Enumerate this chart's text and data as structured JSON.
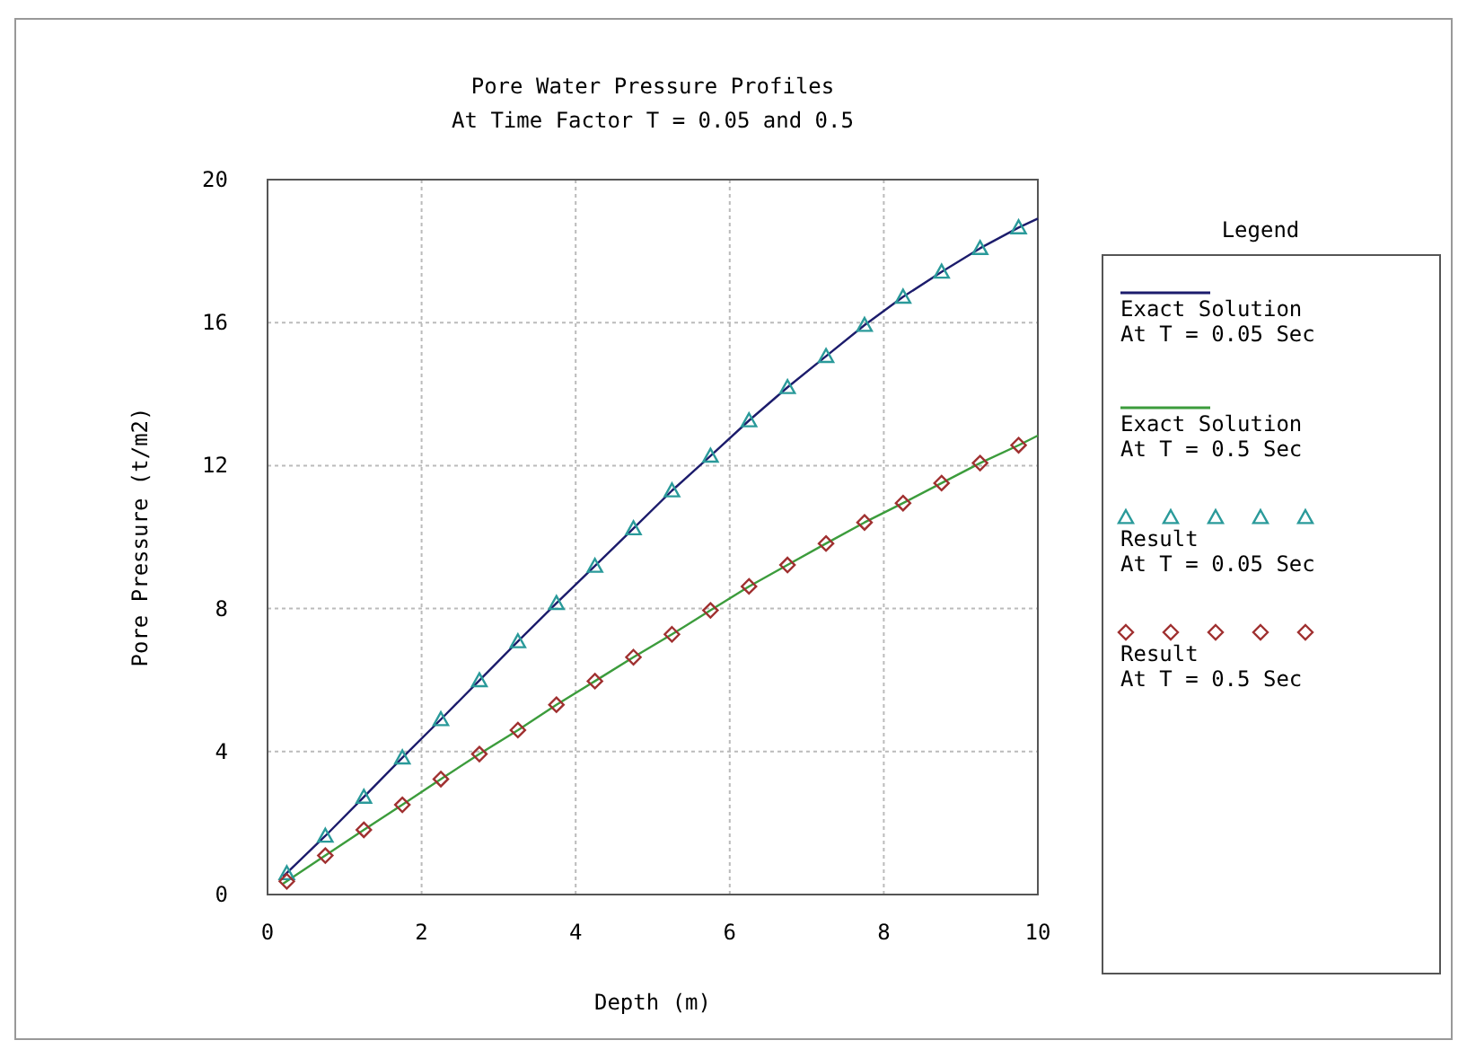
{
  "chart_data": {
    "type": "line",
    "title": "Pore Water Pressure Profiles",
    "subtitle": "At Time Factor T = 0.05 and 0.5",
    "xlabel": "Depth (m)",
    "ylabel": "Pore Pressure (t/m2)",
    "legend_title": "Legend",
    "legend": "right",
    "grid": true,
    "xlim": [
      0,
      10
    ],
    "ylim": [
      0,
      20
    ],
    "xticks": [
      0,
      2,
      4,
      6,
      8,
      10
    ],
    "yticks": [
      0,
      4,
      8,
      12,
      16,
      20
    ],
    "series": [
      {
        "name": "Exact Solution\nAt T = 0.05 Sec",
        "color": "#1c1c6c",
        "marker": "none",
        "x": [
          0.2,
          0.75,
          1.25,
          1.75,
          2.25,
          2.75,
          3.25,
          3.75,
          4.25,
          4.75,
          5.25,
          5.75,
          6.25,
          6.75,
          7.25,
          7.75,
          8.25,
          8.75,
          9.25,
          9.75,
          10
        ],
        "values": [
          0.5,
          1.64,
          2.73,
          3.83,
          4.9,
          5.99,
          7.08,
          8.15,
          9.19,
          10.24,
          11.3,
          12.27,
          13.26,
          14.19,
          15.06,
          15.93,
          16.72,
          17.42,
          18.08,
          18.66,
          18.91
        ]
      },
      {
        "name": "Exact Solution\nAt T = 0.5 Sec",
        "color": "#3c9c3c",
        "marker": "none",
        "x": [
          0.2,
          0.75,
          1.25,
          1.75,
          2.25,
          2.75,
          3.25,
          3.75,
          4.25,
          4.75,
          5.25,
          5.75,
          6.25,
          6.75,
          7.25,
          7.75,
          8.25,
          8.75,
          9.25,
          9.75,
          10
        ],
        "values": [
          0.3,
          1.09,
          1.81,
          2.51,
          3.23,
          3.93,
          4.6,
          5.31,
          5.97,
          6.64,
          7.28,
          7.95,
          8.62,
          9.22,
          9.82,
          10.41,
          10.95,
          11.51,
          12.07,
          12.57,
          12.84
        ]
      },
      {
        "name": "Result\nAt T = 0.05 Sec",
        "type": "scatter",
        "color": "#2a9a9a",
        "marker": "triangle",
        "x": [
          0.25,
          0.75,
          1.25,
          1.75,
          2.25,
          2.75,
          3.25,
          3.75,
          4.25,
          4.75,
          5.25,
          5.75,
          6.25,
          6.75,
          7.25,
          7.75,
          8.25,
          8.75,
          9.25,
          9.75
        ],
        "values": [
          0.59,
          1.64,
          2.73,
          3.83,
          4.9,
          5.99,
          7.08,
          8.15,
          9.19,
          10.24,
          11.3,
          12.27,
          13.26,
          14.19,
          15.06,
          15.93,
          16.72,
          17.42,
          18.08,
          18.66
        ]
      },
      {
        "name": "Result\nAt T = 0.5 Sec",
        "type": "scatter",
        "color": "#a03030",
        "marker": "diamond",
        "x": [
          0.25,
          0.75,
          1.25,
          1.75,
          2.25,
          2.75,
          3.25,
          3.75,
          4.25,
          4.75,
          5.25,
          5.75,
          6.25,
          6.75,
          7.25,
          7.75,
          8.25,
          8.75,
          9.25,
          9.75
        ],
        "values": [
          0.37,
          1.09,
          1.81,
          2.51,
          3.23,
          3.93,
          4.6,
          5.31,
          5.97,
          6.64,
          7.28,
          7.95,
          8.62,
          9.22,
          9.82,
          10.41,
          10.95,
          11.51,
          12.07,
          12.57
        ]
      }
    ]
  }
}
